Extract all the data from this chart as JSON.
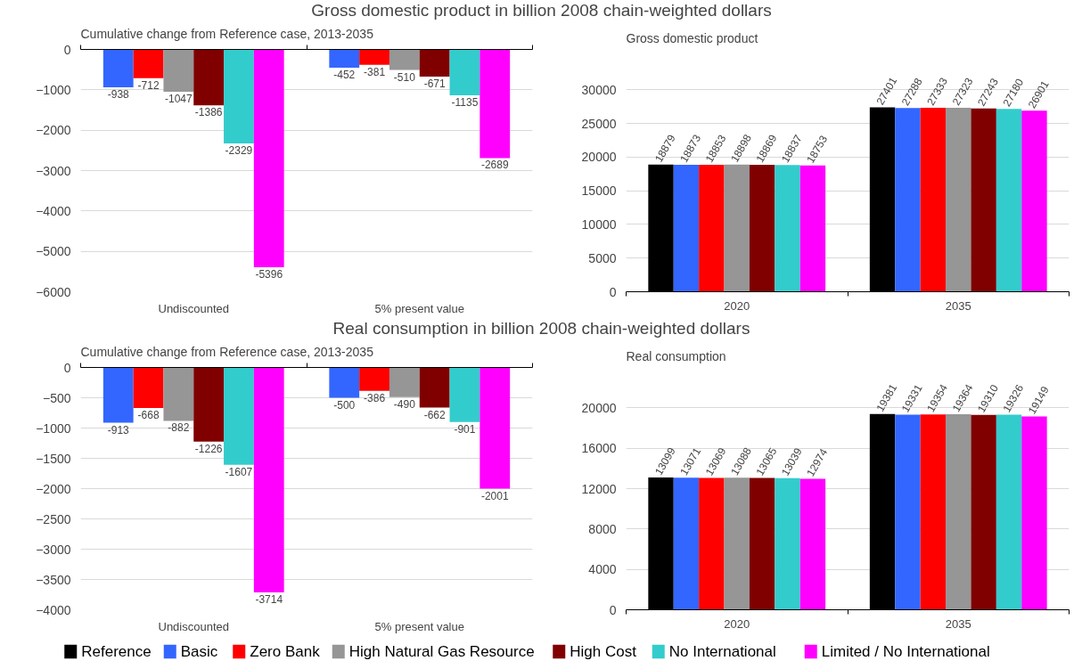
{
  "chart_data": [
    {
      "type": "bar",
      "title": "Gross domestic product in billion 2008 chain-weighted dollars",
      "subtitle": "Cumulative change from Reference case, 2013-2035",
      "categories": [
        "Undiscounted",
        "5% present value"
      ],
      "ylim": [
        -6000,
        0
      ],
      "yticks": [
        -6000,
        -5000,
        -4000,
        -3000,
        -2000,
        -1000,
        0
      ],
      "grid": "y",
      "data_labels": true,
      "legend": "bottom",
      "series": [
        {
          "name": "Basic",
          "color": "#3366ff",
          "values": [
            -938,
            -452
          ]
        },
        {
          "name": "Zero Bank",
          "color": "#ff0000",
          "values": [
            -712,
            -381
          ]
        },
        {
          "name": "High Natural Gas Resource",
          "color": "#969696",
          "values": [
            -1047,
            -510
          ]
        },
        {
          "name": "High Cost",
          "color": "#800000",
          "values": [
            -1386,
            -671
          ]
        },
        {
          "name": "No International",
          "color": "#33cccc",
          "values": [
            -2329,
            -1135
          ]
        },
        {
          "name": "Limited / No International",
          "color": "#ff00ff",
          "values": [
            -5396,
            -2689
          ]
        }
      ]
    },
    {
      "type": "bar",
      "title": "Gross domestic product",
      "categories": [
        "2020",
        "2035"
      ],
      "ylim": [
        0,
        30000
      ],
      "yticks": [
        0,
        5000,
        10000,
        15000,
        20000,
        25000,
        30000
      ],
      "grid": "y",
      "data_labels": true,
      "legend": "bottom",
      "series": [
        {
          "name": "Reference",
          "color": "#000000",
          "values": [
            18879,
            27401
          ]
        },
        {
          "name": "Basic",
          "color": "#3366ff",
          "values": [
            18873,
            27288
          ]
        },
        {
          "name": "Zero Bank",
          "color": "#ff0000",
          "values": [
            18853,
            27333
          ]
        },
        {
          "name": "High Natural Gas Resource",
          "color": "#969696",
          "values": [
            18898,
            27323
          ]
        },
        {
          "name": "High Cost",
          "color": "#800000",
          "values": [
            18869,
            27243
          ]
        },
        {
          "name": "No International",
          "color": "#33cccc",
          "values": [
            18837,
            27180
          ]
        },
        {
          "name": "Limited / No International",
          "color": "#ff00ff",
          "values": [
            18753,
            26901
          ]
        }
      ]
    },
    {
      "type": "bar",
      "title": "Real consumption in billion 2008 chain-weighted dollars",
      "subtitle": "Cumulative change from Reference case, 2013-2035",
      "categories": [
        "Undiscounted",
        "5% present value"
      ],
      "ylim": [
        -4000,
        0
      ],
      "yticks": [
        -4000,
        -3500,
        -3000,
        -2500,
        -2000,
        -1500,
        -1000,
        -500,
        0
      ],
      "grid": "y",
      "data_labels": true,
      "legend": "bottom",
      "series": [
        {
          "name": "Basic",
          "color": "#3366ff",
          "values": [
            -913,
            -500
          ]
        },
        {
          "name": "Zero Bank",
          "color": "#ff0000",
          "values": [
            -668,
            -386
          ]
        },
        {
          "name": "High Natural Gas Resource",
          "color": "#969696",
          "values": [
            -882,
            -490
          ]
        },
        {
          "name": "High Cost",
          "color": "#800000",
          "values": [
            -1226,
            -662
          ]
        },
        {
          "name": "No International",
          "color": "#33cccc",
          "values": [
            -1607,
            -901
          ]
        },
        {
          "name": "Limited / No International",
          "color": "#ff00ff",
          "values": [
            -3714,
            -2001
          ]
        }
      ]
    },
    {
      "type": "bar",
      "title": "Real consumption",
      "categories": [
        "2020",
        "2035"
      ],
      "ylim": [
        0,
        20000
      ],
      "yticks": [
        0,
        4000,
        8000,
        12000,
        16000,
        20000
      ],
      "grid": "y",
      "data_labels": true,
      "legend": "bottom",
      "series": [
        {
          "name": "Reference",
          "color": "#000000",
          "values": [
            13099,
            19381
          ]
        },
        {
          "name": "Basic",
          "color": "#3366ff",
          "values": [
            13071,
            19331
          ]
        },
        {
          "name": "Zero Bank",
          "color": "#ff0000",
          "values": [
            13069,
            19354
          ]
        },
        {
          "name": "High Natural Gas Resource",
          "color": "#969696",
          "values": [
            13088,
            19364
          ]
        },
        {
          "name": "High Cost",
          "color": "#800000",
          "values": [
            13065,
            19310
          ]
        },
        {
          "name": "No International",
          "color": "#33cccc",
          "values": [
            13039,
            19326
          ]
        },
        {
          "name": "Limited / No International",
          "color": "#ff00ff",
          "values": [
            12974,
            19149
          ]
        }
      ]
    }
  ]
}
